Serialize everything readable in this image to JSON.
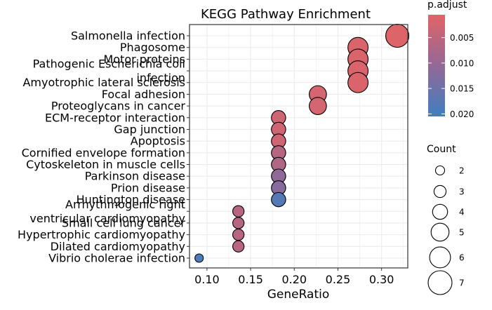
{
  "chart_data": {
    "type": "scatter",
    "title": "KEGG Pathway Enrichment",
    "xlabel": "GeneRatio",
    "ylabel": "",
    "xlim": [
      0.08,
      0.33
    ],
    "xticks": [
      "0.10",
      "0.15",
      "0.20",
      "0.25",
      "0.30"
    ],
    "grid": true,
    "legend_position": "right",
    "size_legend": {
      "title": "Count",
      "values": [
        "2",
        "3",
        "4",
        "5",
        "6",
        "7"
      ]
    },
    "color_legend": {
      "title": "p.adjust",
      "ticks": [
        "0.005",
        "0.010",
        "0.015",
        "0.020"
      ],
      "low_color": "#E16467",
      "high_color": "#3F7FBF",
      "range": [
        0.0005,
        0.0205
      ]
    },
    "points": [
      {
        "term": "Salmonella infection",
        "x": 0.318,
        "count": 7,
        "padj": 0.001
      },
      {
        "term": "Phagosome",
        "x": 0.273,
        "count": 6,
        "padj": 0.0015
      },
      {
        "term": "Motor proteins",
        "x": 0.273,
        "count": 6,
        "padj": 0.0015
      },
      {
        "term": "Pathogenic Escherichia coli\ninfection",
        "x": 0.273,
        "count": 6,
        "padj": 0.0015
      },
      {
        "term": "Amyotrophic lateral sclerosis",
        "x": 0.273,
        "count": 6,
        "padj": 0.0015
      },
      {
        "term": "Focal adhesion",
        "x": 0.227,
        "count": 5,
        "padj": 0.002
      },
      {
        "term": "Proteoglycans in cancer",
        "x": 0.227,
        "count": 5,
        "padj": 0.002
      },
      {
        "term": "ECM-receptor interaction",
        "x": 0.182,
        "count": 4,
        "padj": 0.003
      },
      {
        "term": "Gap junction",
        "x": 0.182,
        "count": 4,
        "padj": 0.003
      },
      {
        "term": "Apoptosis",
        "x": 0.182,
        "count": 4,
        "padj": 0.003
      },
      {
        "term": "Cornified envelope formation",
        "x": 0.182,
        "count": 4,
        "padj": 0.006
      },
      {
        "term": "Cytoskeleton in muscle cells",
        "x": 0.182,
        "count": 4,
        "padj": 0.007
      },
      {
        "term": "Parkinson disease",
        "x": 0.182,
        "count": 4,
        "padj": 0.011
      },
      {
        "term": "Prion disease",
        "x": 0.182,
        "count": 4,
        "padj": 0.012
      },
      {
        "term": "Huntington disease",
        "x": 0.182,
        "count": 4,
        "padj": 0.018
      },
      {
        "term": "Arrhythmogenic right\nventricular cardiomyopathy",
        "x": 0.136,
        "count": 3,
        "padj": 0.006
      },
      {
        "term": "Small cell lung cancer",
        "x": 0.136,
        "count": 3,
        "padj": 0.006
      },
      {
        "term": "Hypertrophic cardiomyopathy",
        "x": 0.136,
        "count": 3,
        "padj": 0.006
      },
      {
        "term": "Dilated cardiomyopathy",
        "x": 0.136,
        "count": 3,
        "padj": 0.006
      },
      {
        "term": "Vibrio cholerae infection",
        "x": 0.091,
        "count": 2,
        "padj": 0.019
      }
    ]
  }
}
